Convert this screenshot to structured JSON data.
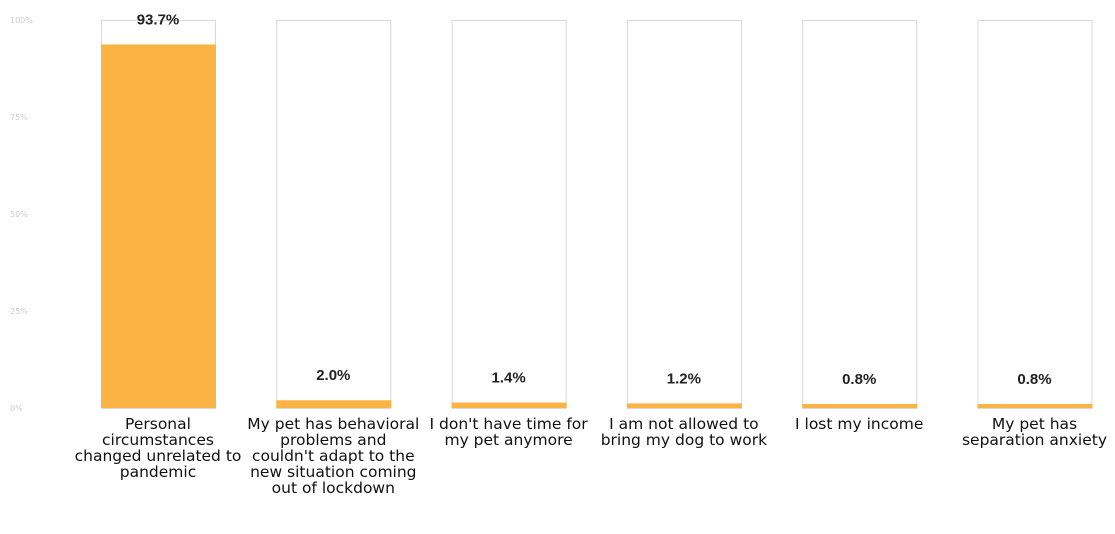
{
  "chart_data": {
    "type": "bar",
    "categories": [
      "Personal circumstances changed unrelated to pandemic",
      "My pet has behavioral problems and couldn't adapt to the new situation coming out of lockdown",
      "I don't have time for my pet anymore",
      "I am not allowed to bring my dog to work",
      "I lost my income",
      "My pet has separation anxiety"
    ],
    "values": [
      93.7,
      2.0,
      1.4,
      1.2,
      0.8,
      0.8
    ],
    "value_labels": [
      "93.7%",
      "2.0%",
      "1.4%",
      "1.2%",
      "0.8%",
      "0.8%"
    ],
    "yticks": [
      "100%",
      "75%",
      "50%",
      "25%",
      "0%"
    ],
    "ylim": [
      0,
      100
    ],
    "grid": false,
    "bar_color": "#fbb443",
    "track_border_color": "#d9d9d9"
  }
}
